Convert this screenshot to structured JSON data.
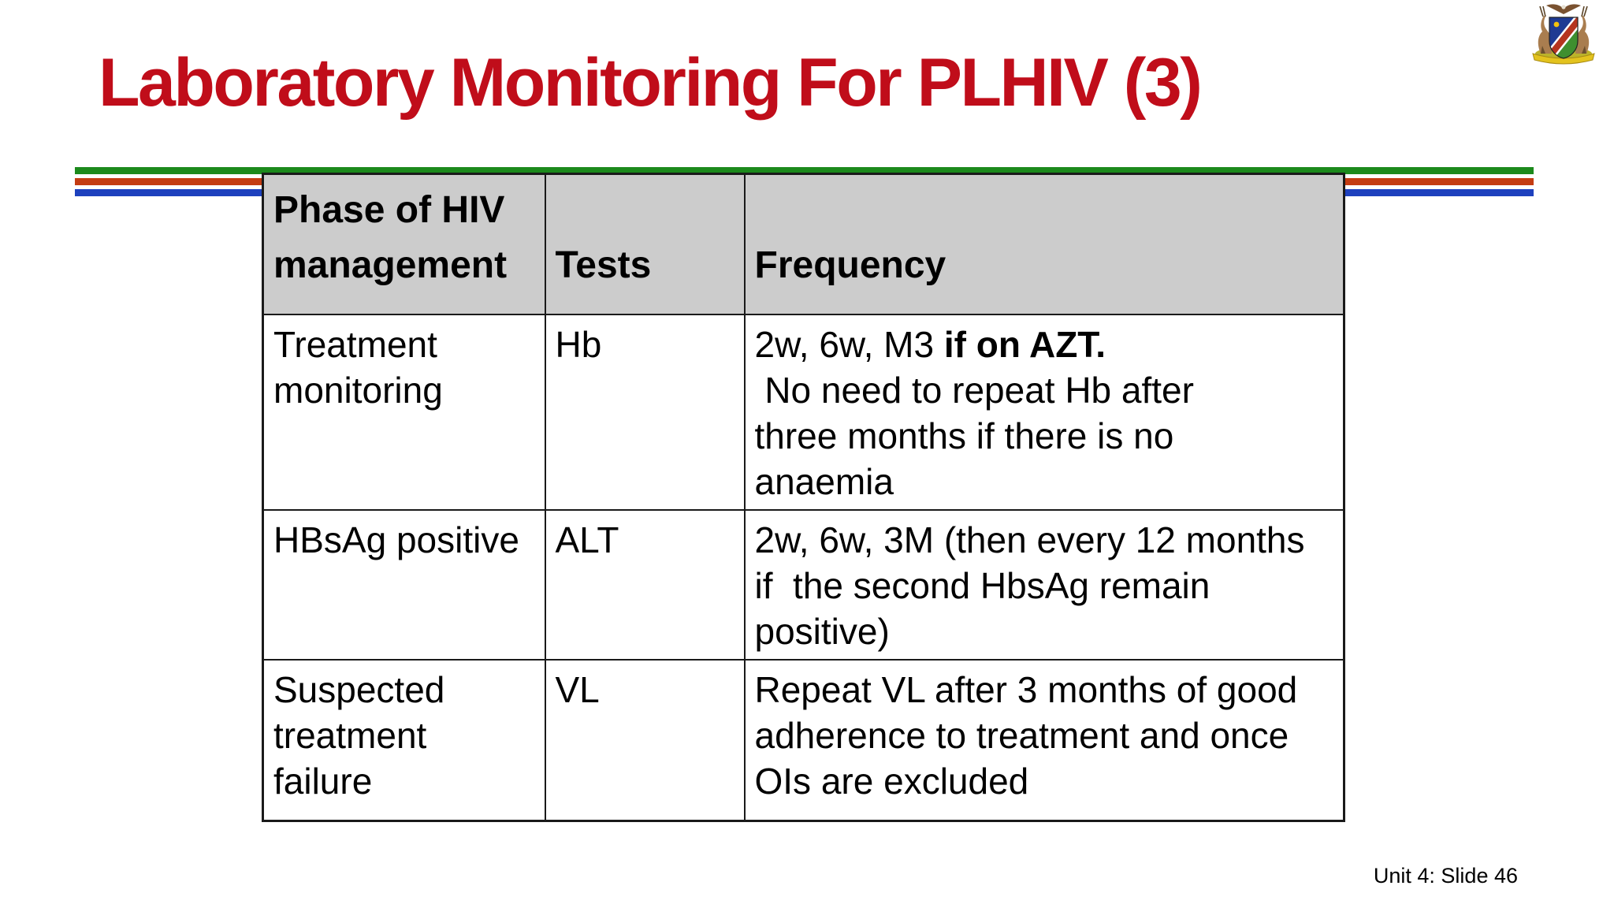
{
  "slide": {
    "title": "Laboratory Monitoring For PLHIV (3)",
    "footer": "Unit 4: Slide 46",
    "logo": "namibia-coat-of-arms"
  },
  "colors": {
    "title_red": "#C00D1A",
    "stripe_green": "#1C8A1C",
    "stripe_red": "#C43C12",
    "stripe_blue": "#1E41BE",
    "header_bg": "#CCCCCC",
    "table_border": "#1A1A1A"
  },
  "table": {
    "column_names": [
      "phase-of-hiv-management",
      "tests",
      "frequency"
    ],
    "header_cells": [
      [
        {
          "t": "Phase of HIV"
        },
        {
          "br": true
        },
        {
          "t": "management"
        }
      ],
      [
        {
          "t": "Tests"
        }
      ],
      [
        {
          "t": "Frequency"
        }
      ]
    ],
    "rows": [
      {
        "cells": [
          [
            {
              "t": "Treatment"
            },
            {
              "br": true
            },
            {
              "t": "monitoring"
            }
          ],
          [
            {
              "t": "Hb"
            }
          ],
          [
            {
              "t": "2w, 6w, M3 "
            },
            {
              "t": "if on AZT.",
              "bold": true
            },
            {
              "br": true
            },
            {
              "t": " No need to repeat Hb after"
            },
            {
              "br": true
            },
            {
              "t": "three months if there is no"
            },
            {
              "br": true
            },
            {
              "t": "anaemia"
            }
          ]
        ]
      },
      {
        "cells": [
          [
            {
              "t": "HBsAg positive"
            }
          ],
          [
            {
              "t": "ALT"
            }
          ],
          [
            {
              "t": "2w, 6w, 3M (then every 12 months"
            },
            {
              "br": true
            },
            {
              "t": "if  the second HbsAg remain"
            },
            {
              "br": true
            },
            {
              "t": "positive)"
            }
          ]
        ]
      },
      {
        "cells": [
          [
            {
              "t": "Suspected"
            },
            {
              "br": true
            },
            {
              "t": "treatment"
            },
            {
              "br": true
            },
            {
              "t": "failure"
            }
          ],
          [
            {
              "t": "VL"
            }
          ],
          [
            {
              "t": "Repeat VL after 3 months of good"
            },
            {
              "br": true
            },
            {
              "t": "adherence to treatment and once"
            },
            {
              "br": true
            },
            {
              "t": "OIs are excluded"
            }
          ]
        ]
      }
    ]
  }
}
